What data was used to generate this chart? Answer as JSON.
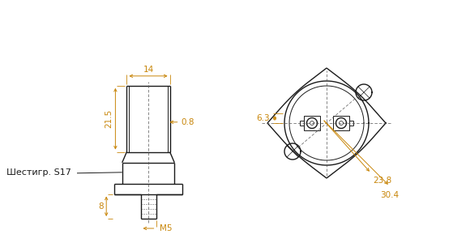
{
  "bg_color": "#ffffff",
  "line_color": "#1a1a1a",
  "dim_color": "#c8860a",
  "font_size": 7.5,
  "annotations": {
    "dim_14": "14",
    "dim_21_5": "21.5",
    "dim_0_8": "0.8",
    "dim_8": "8",
    "dim_M5": "M5",
    "dim_6_3": "6.3",
    "dim_23_8": "23.8",
    "dim_30_4": "30.4",
    "label_hex": "Шестигр. S17"
  }
}
